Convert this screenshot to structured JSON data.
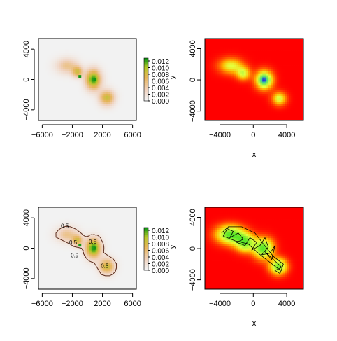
{
  "chart_data": [
    {
      "type": "heatmap",
      "panel": "top-left",
      "color_scale": "grey-to-orange-to-green",
      "x_ticks": [
        -6000,
        -2000,
        2000,
        6000
      ],
      "x_tick_labels": [
        "−6000",
        "−2000",
        "2000",
        "6000"
      ],
      "y_ticks": [
        -4000,
        0,
        4000
      ],
      "y_tick_labels": [
        "−4000",
        "0",
        "4000"
      ],
      "xlim": [
        -6500,
        6500
      ],
      "ylim": [
        -5400,
        5400
      ],
      "blobs": [
        {
          "x": -2700,
          "y": 1800,
          "sx": 1000,
          "sy": 700,
          "amp": 0.004
        },
        {
          "x": -1300,
          "y": 1000,
          "sx": 500,
          "sy": 500,
          "amp": 0.006
        },
        {
          "x": 800,
          "y": 0,
          "sx": 700,
          "sy": 900,
          "amp": 0.01
        },
        {
          "x": 2600,
          "y": -2400,
          "sx": 700,
          "sy": 700,
          "amp": 0.007
        }
      ],
      "hotspots": [
        {
          "x": -1000,
          "y": 400,
          "amp": 0.013
        },
        {
          "x": 1000,
          "y": 0,
          "amp": 0.011
        }
      ],
      "legend": {
        "ticks": [
          "0.012",
          "0.010",
          "0.008",
          "0.006",
          "0.004",
          "0.002",
          "0.000"
        ],
        "ylabel": "y"
      }
    },
    {
      "type": "heatmap",
      "panel": "top-right",
      "color_scale": "red-yellow-green-blue",
      "x_ticks": [
        -4000,
        0,
        4000
      ],
      "x_tick_labels": [
        "−4000",
        "0",
        "4000"
      ],
      "y_ticks": [
        -4000,
        0,
        4000
      ],
      "y_tick_labels": [
        "−4000",
        "0",
        "4000"
      ],
      "xlim": [
        -5800,
        6000
      ],
      "ylim": [
        -5200,
        5300
      ],
      "xlabel": "x",
      "blobs": [
        {
          "x": -2700,
          "y": 1800,
          "sx": 1000,
          "sy": 700,
          "amp": 0.55
        },
        {
          "x": -1200,
          "y": 800,
          "sx": 600,
          "sy": 600,
          "amp": 0.55
        },
        {
          "x": 1300,
          "y": 0,
          "sx": 700,
          "sy": 800,
          "amp": 1.0
        },
        {
          "x": 3100,
          "y": -2400,
          "sx": 600,
          "sy": 600,
          "amp": 0.6
        }
      ]
    },
    {
      "type": "heatmap",
      "panel": "bottom-left",
      "color_scale": "grey-to-orange-to-green",
      "x_ticks": [
        -6000,
        -2000,
        2000,
        6000
      ],
      "x_tick_labels": [
        "−6000",
        "−2000",
        "2000",
        "6000"
      ],
      "y_ticks": [
        -4000,
        0,
        4000
      ],
      "y_tick_labels": [
        "−4000",
        "0",
        "4000"
      ],
      "xlim": [
        -6500,
        6500
      ],
      "ylim": [
        -5400,
        5400
      ],
      "blobs": [
        {
          "x": -2700,
          "y": 1800,
          "sx": 1000,
          "sy": 700,
          "amp": 0.004
        },
        {
          "x": -1300,
          "y": 1000,
          "sx": 500,
          "sy": 500,
          "amp": 0.006
        },
        {
          "x": 800,
          "y": 0,
          "sx": 700,
          "sy": 900,
          "amp": 0.01
        },
        {
          "x": 2600,
          "y": -2400,
          "sx": 700,
          "sy": 700,
          "amp": 0.007
        }
      ],
      "hotspots": [
        {
          "x": -1000,
          "y": 400,
          "amp": 0.013
        },
        {
          "x": 1000,
          "y": 0,
          "amp": 0.011
        }
      ],
      "contour_labels": [
        {
          "text": "0.5",
          "x": -3000,
          "y": 2700
        },
        {
          "text": "0.5",
          "x": -1900,
          "y": 500
        },
        {
          "text": "0.5",
          "x": 700,
          "y": 600
        },
        {
          "text": "0.9",
          "x": -1700,
          "y": -1200
        },
        {
          "text": "0.5",
          "x": 2300,
          "y": -2600
        }
      ],
      "legend": {
        "ticks": [
          "0.012",
          "0.010",
          "0.008",
          "0.006",
          "0.004",
          "0.002",
          "0.000"
        ],
        "ylabel": "y"
      }
    },
    {
      "type": "heatmap",
      "panel": "bottom-right",
      "color_scale": "red-yellow-green",
      "x_ticks": [
        -4000,
        0,
        4000
      ],
      "x_tick_labels": [
        "−4000",
        "0",
        "4000"
      ],
      "y_ticks": [
        -4000,
        0,
        4000
      ],
      "y_tick_labels": [
        "−4000",
        "0",
        "4000"
      ],
      "xlim": [
        -5800,
        6000
      ],
      "ylim": [
        -5200,
        5300
      ],
      "xlabel": "x",
      "blobs": [
        {
          "x": -2800,
          "y": 1800,
          "sx": 1100,
          "sy": 800,
          "amp": 0.6
        },
        {
          "x": -1000,
          "y": 800,
          "sx": 800,
          "sy": 800,
          "amp": 0.55
        },
        {
          "x": 1200,
          "y": 0,
          "sx": 800,
          "sy": 900,
          "amp": 0.6
        },
        {
          "x": 3000,
          "y": -2300,
          "sx": 700,
          "sy": 700,
          "amp": 0.55
        }
      ],
      "track": [
        [
          -3800,
          2000
        ],
        [
          -3200,
          2600
        ],
        [
          -2400,
          2200
        ],
        [
          -2800,
          1400
        ],
        [
          -1800,
          2000
        ],
        [
          -1200,
          1200
        ],
        [
          -2000,
          800
        ],
        [
          -1000,
          400
        ],
        [
          -400,
          1400
        ],
        [
          400,
          800
        ],
        [
          -200,
          -200
        ],
        [
          800,
          400
        ],
        [
          1400,
          1400
        ],
        [
          1800,
          200
        ],
        [
          1000,
          -800
        ],
        [
          2000,
          -600
        ],
        [
          2600,
          400
        ],
        [
          2200,
          -1400
        ],
        [
          1400,
          -400
        ],
        [
          2800,
          -1800
        ],
        [
          3400,
          -2400
        ],
        [
          2600,
          -2800
        ],
        [
          3200,
          -3200
        ],
        [
          3600,
          -2000
        ],
        [
          2400,
          -1000
        ],
        [
          1200,
          600
        ],
        [
          200,
          2000
        ],
        [
          -1400,
          2800
        ],
        [
          -3000,
          2800
        ],
        [
          -3600,
          1600
        ],
        [
          -2200,
          1000
        ],
        [
          -600,
          600
        ],
        [
          600,
          -600
        ],
        [
          1800,
          -1600
        ],
        [
          3000,
          -2600
        ],
        [
          3400,
          -2800
        ]
      ]
    }
  ]
}
